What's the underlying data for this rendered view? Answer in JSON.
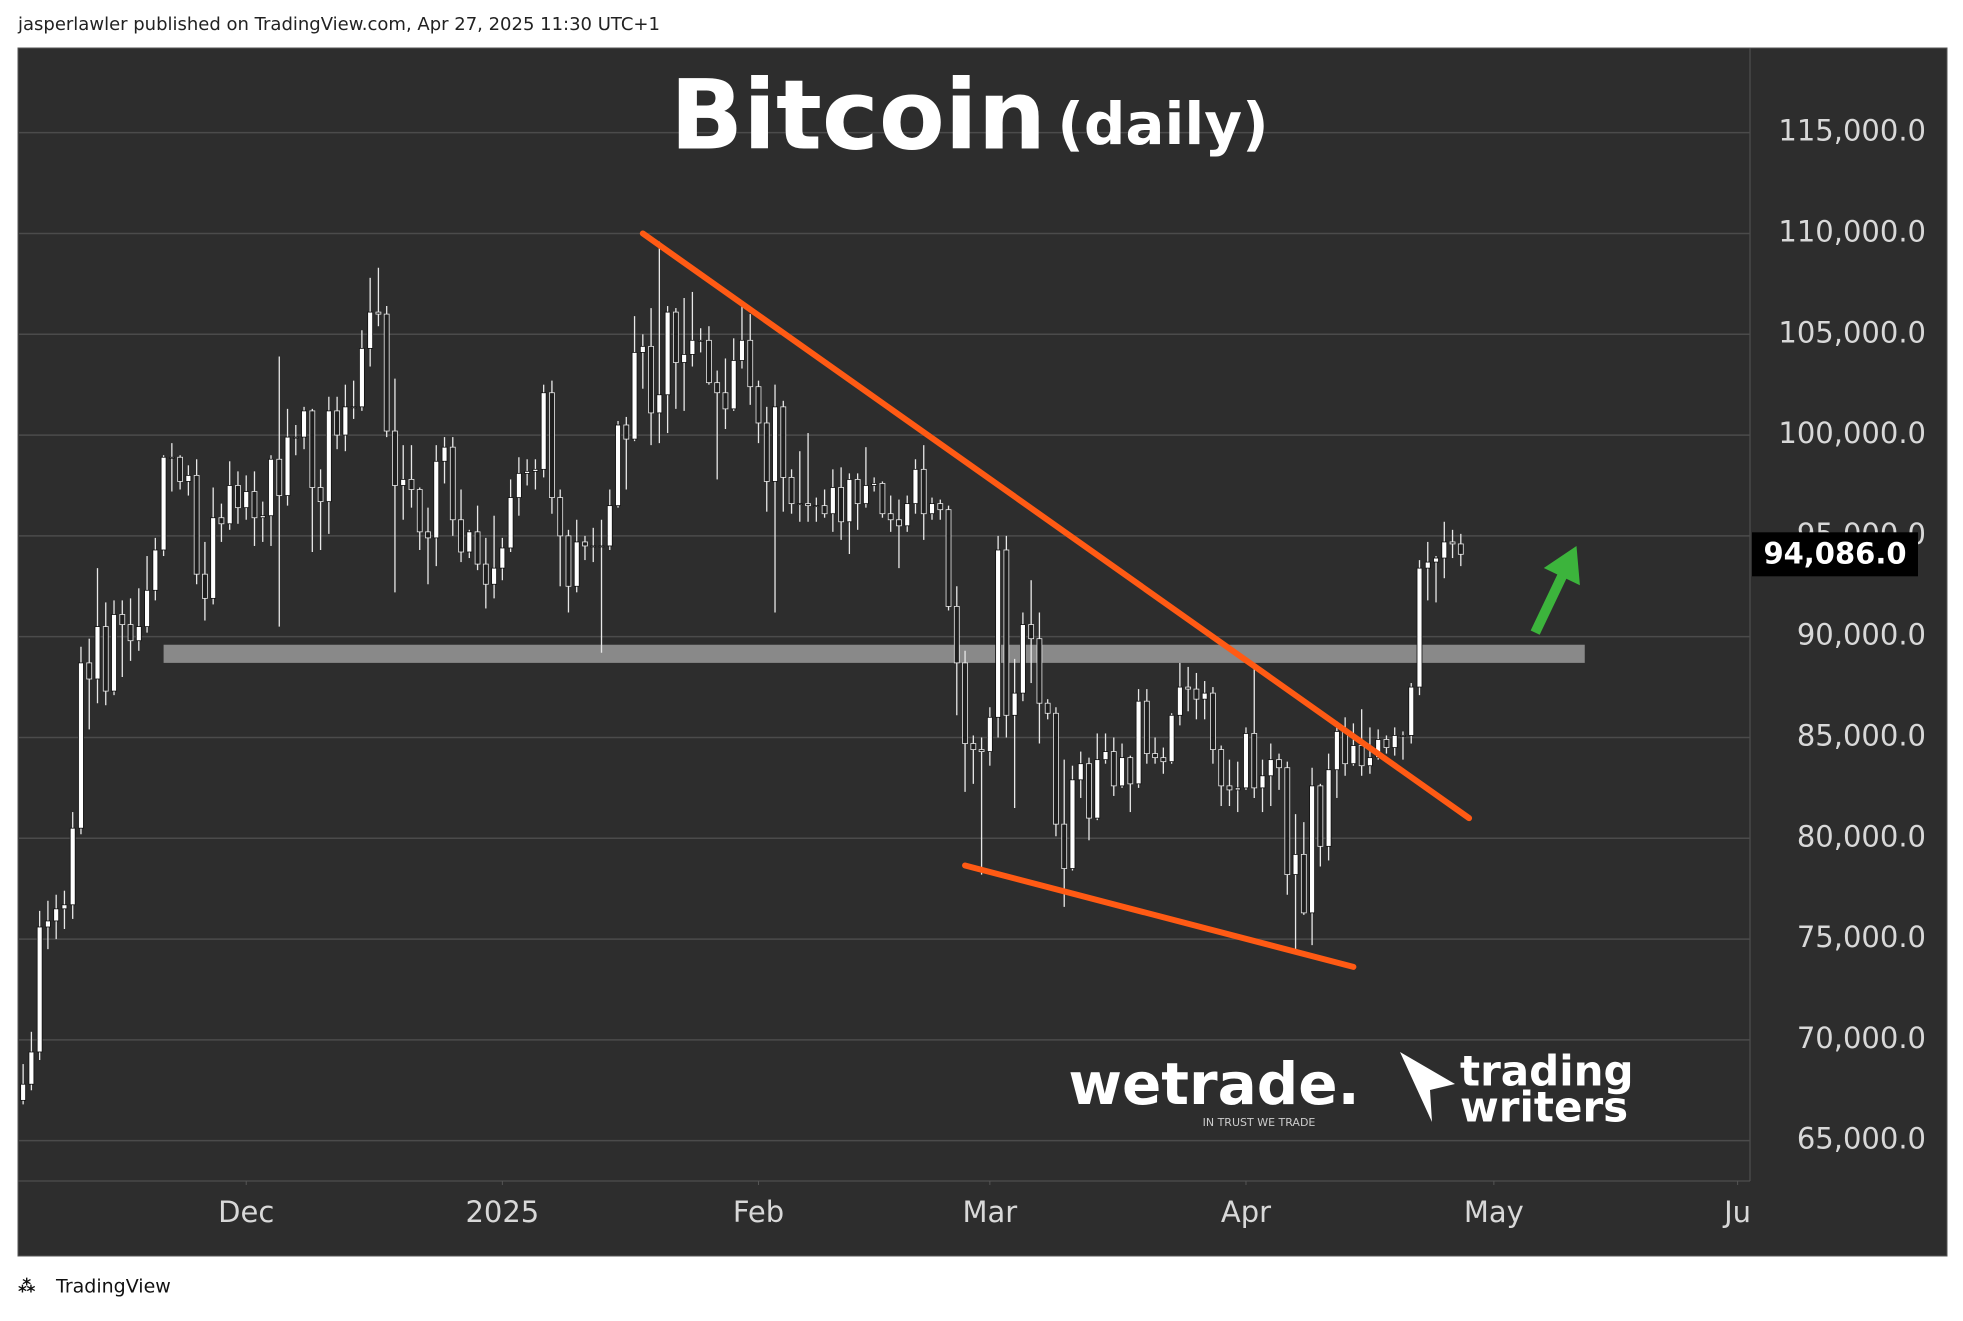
{
  "header": "jasperlawler published on TradingView.com, Apr 27, 2025 11:30 UTC+1",
  "footer": "TradingView",
  "logos": {
    "wetrade": "wetrade.",
    "wetrade_tagline": "IN TRUST WE TRADE",
    "writers_top": "trading",
    "writers_bottom": "writers"
  },
  "chart_data": {
    "type": "candlestick",
    "title": "Bitcoin",
    "subtitle": "(daily)",
    "up_color": "#ffffff",
    "down_color": "#1e1e1e",
    "grid": true,
    "xlim": [
      -0.5,
      209
    ],
    "ylim": [
      63000,
      119200
    ],
    "xticks": [
      {
        "value": 27,
        "label": "Dec"
      },
      {
        "value": 58,
        "label": "2025"
      },
      {
        "value": 89,
        "label": "Feb"
      },
      {
        "value": 117,
        "label": "Mar"
      },
      {
        "value": 148,
        "label": "Apr"
      },
      {
        "value": 178,
        "label": "May"
      },
      {
        "value": 207.5,
        "label": "Ju"
      }
    ],
    "yticks": [
      {
        "value": 65000,
        "label": "65,000.0"
      },
      {
        "value": 70000,
        "label": "70,000.0"
      },
      {
        "value": 75000,
        "label": "75,000.0"
      },
      {
        "value": 80000,
        "label": "80,000.0"
      },
      {
        "value": 85000,
        "label": "85,000.0"
      },
      {
        "value": 90000,
        "label": "90,000.0"
      },
      {
        "value": 95000,
        "label": "95,000.0"
      },
      {
        "value": 100000,
        "label": "100,000.0"
      },
      {
        "value": 105000,
        "label": "105,000.0"
      },
      {
        "value": 110000,
        "label": "110,000.0"
      },
      {
        "value": 115000,
        "label": "115,000.0"
      }
    ],
    "price_tag": {
      "value": 94086,
      "label": "94,086.0"
    },
    "support_zone": {
      "x": [
        17,
        189
      ],
      "y": [
        88700,
        89600
      ],
      "color": "#9a9a9a"
    },
    "trendlines": [
      {
        "points": [
          [
            75,
            110000
          ],
          [
            175,
            81000
          ]
        ],
        "color": "#ff5a14"
      },
      {
        "points": [
          [
            114,
            78650
          ],
          [
            161,
            73620
          ]
        ],
        "color": "#ff5a14"
      }
    ],
    "arrow": {
      "from": [
        183,
        90200
      ],
      "to": [
        188,
        94500
      ],
      "color": "#3cb43c"
    },
    "open": [
      67000,
      67800,
      69400,
      75600,
      75900,
      76500,
      76700,
      80500,
      88700,
      87900,
      90500,
      87300,
      91100,
      90600,
      89800,
      90500,
      92300,
      94300,
      98900,
      98900,
      97700,
      98000,
      93100,
      91900,
      95900,
      95600,
      97500,
      96400,
      97200,
      95900,
      96000,
      98800,
      97000,
      99900,
      99900,
      101200,
      97400,
      96700,
      101200,
      100000,
      101400,
      101400,
      104300,
      106100,
      106000,
      100200,
      97500,
      97800,
      97300,
      95200,
      94900,
      98700,
      99400,
      95800,
      94200,
      95200,
      93600,
      92600,
      93400,
      94400,
      96900,
      98100,
      98200,
      98300,
      102100,
      96900,
      95000,
      92500,
      94700,
      94500,
      94500,
      94500,
      96500,
      100500,
      99800,
      104100,
      104400,
      101100,
      102000,
      106100,
      103600,
      104000,
      104700,
      104700,
      102600,
      102100,
      101300,
      103700,
      104700,
      102400,
      100600,
      97700,
      101400,
      97900,
      96600,
      96600,
      96500,
      96500,
      96100,
      97400,
      95700,
      97800,
      96600,
      97500,
      97600,
      96100,
      95800,
      95500,
      96600,
      98300,
      96100,
      96600,
      96300,
      91500,
      88700,
      84700,
      84400,
      84300,
      86000,
      94300,
      86100,
      87200,
      90600,
      89900,
      86700,
      86200,
      80700,
      78500,
      82900,
      83700,
      81000,
      83900,
      84300,
      82600,
      84000,
      82700,
      86800,
      84200,
      84000,
      83800,
      86100,
      87500,
      87400,
      86900,
      87200,
      84400,
      82600,
      82400,
      82500,
      85200,
      82500,
      83100,
      83900,
      83500,
      78200,
      79200,
      76300,
      82600,
      79600,
      83400,
      85300,
      83700,
      84600,
      83600,
      84000,
      84900,
      84500,
      85100,
      85100,
      87500,
      93400,
      93700,
      93900,
      94700,
      94600
    ],
    "high": [
      68800,
      70400,
      76400,
      76900,
      77200,
      77400,
      81300,
      89500,
      89900,
      93400,
      91700,
      91800,
      91800,
      91900,
      92400,
      94000,
      94900,
      99000,
      99600,
      99000,
      98500,
      98800,
      94700,
      97400,
      96600,
      98700,
      98200,
      98000,
      98200,
      96700,
      99000,
      103900,
      101300,
      100500,
      101400,
      101300,
      98300,
      101900,
      101900,
      102500,
      102700,
      105200,
      107800,
      108300,
      106400,
      102800,
      99500,
      99500,
      97400,
      96400,
      99500,
      99900,
      99900,
      97300,
      95300,
      96500,
      94900,
      96000,
      94900,
      97800,
      98900,
      98800,
      98800,
      102500,
      102700,
      97300,
      95300,
      95800,
      95000,
      95400,
      95800,
      97300,
      100700,
      100900,
      105900,
      105000,
      106300,
      109600,
      106400,
      106300,
      106800,
      107100,
      105300,
      105400,
      103200,
      103800,
      104800,
      106400,
      106000,
      102700,
      101400,
      102500,
      101700,
      98300,
      99200,
      100100,
      96900,
      97300,
      98300,
      98400,
      98100,
      98100,
      99400,
      97900,
      97700,
      97000,
      96800,
      97000,
      98800,
      99500,
      96900,
      96800,
      96500,
      92500,
      89300,
      85100,
      85000,
      86500,
      95000,
      95000,
      88900,
      91200,
      92800,
      91200,
      86900,
      86500,
      83900,
      83600,
      84300,
      84000,
      85200,
      85200,
      85000,
      84700,
      84100,
      87400,
      87400,
      85000,
      84500,
      86200,
      88700,
      88500,
      88200,
      87800,
      87500,
      84600,
      83900,
      83800,
      85500,
      88500,
      83900,
      84700,
      84200,
      83800,
      81200,
      80800,
      83500,
      82700,
      84200,
      85800,
      86000,
      85700,
      86400,
      85500,
      85400,
      85100,
      85500,
      85300,
      87700,
      93800,
      94700,
      94000,
      95700,
      95300,
      95100
    ],
    "low": [
      66800,
      67500,
      69000,
      74500,
      75000,
      75500,
      76000,
      80200,
      85400,
      86700,
      86600,
      87100,
      88000,
      88800,
      89300,
      90200,
      91800,
      94000,
      97200,
      97300,
      97000,
      92600,
      90800,
      91600,
      94700,
      95300,
      95600,
      95800,
      94500,
      94700,
      94500,
      90500,
      96500,
      99000,
      99300,
      94200,
      94300,
      95100,
      99300,
      99200,
      100800,
      101200,
      103400,
      105400,
      99900,
      92200,
      95800,
      96400,
      94300,
      92600,
      93500,
      97600,
      95000,
      93700,
      93900,
      93300,
      91400,
      91900,
      92800,
      94200,
      96000,
      97500,
      97300,
      97900,
      96100,
      92500,
      91200,
      92200,
      93800,
      93700,
      89200,
      94300,
      96400,
      97300,
      99700,
      102300,
      99500,
      99600,
      100100,
      101300,
      101200,
      103400,
      104100,
      102500,
      97800,
      100300,
      101200,
      103300,
      101500,
      99600,
      96200,
      91200,
      96200,
      96100,
      95700,
      95700,
      95700,
      95900,
      95200,
      94800,
      94100,
      95300,
      96400,
      97200,
      95900,
      95200,
      93400,
      95200,
      96100,
      94800,
      95800,
      95800,
      91300,
      86100,
      82300,
      82700,
      78200,
      83600,
      85000,
      85000,
      81500,
      86800,
      87700,
      84700,
      85900,
      80100,
      76600,
      78400,
      82000,
      79900,
      80900,
      83700,
      82100,
      82500,
      81300,
      82500,
      83700,
      83700,
      83200,
      83700,
      85600,
      86300,
      85900,
      85900,
      83700,
      81600,
      81600,
      81300,
      82400,
      82000,
      81300,
      81600,
      82400,
      77200,
      74500,
      76200,
      74700,
      78600,
      78900,
      82000,
      83100,
      83600,
      83100,
      83200,
      83900,
      84200,
      84100,
      83900,
      84700,
      87100,
      91800,
      91700,
      92900,
      93900,
      93500
    ],
    "close": [
      67800,
      69400,
      75600,
      75900,
      76500,
      76700,
      80500,
      88700,
      87900,
      90500,
      87300,
      91100,
      90600,
      89800,
      90500,
      92300,
      94300,
      98900,
      98900,
      97700,
      98000,
      93100,
      91900,
      95900,
      95600,
      97500,
      96400,
      97200,
      95900,
      96000,
      98800,
      97000,
      99900,
      99900,
      101200,
      97400,
      96700,
      101200,
      100000,
      101400,
      101400,
      104300,
      106100,
      106000,
      100200,
      97500,
      97800,
      97300,
      95200,
      94900,
      98700,
      99400,
      95800,
      94200,
      95200,
      93600,
      92600,
      93400,
      94400,
      96900,
      98100,
      98200,
      98300,
      102100,
      96900,
      95000,
      92500,
      94700,
      94500,
      94500,
      94500,
      96500,
      100500,
      99800,
      104100,
      104400,
      101100,
      102000,
      106100,
      103600,
      104000,
      104700,
      104700,
      102600,
      102100,
      101300,
      103700,
      104700,
      102400,
      100600,
      97700,
      101400,
      97900,
      96600,
      96600,
      96500,
      96500,
      96100,
      97400,
      95700,
      97800,
      96600,
      97500,
      97600,
      96100,
      95800,
      95500,
      96600,
      98300,
      96100,
      96600,
      96300,
      91500,
      88700,
      84700,
      84400,
      84300,
      86000,
      94300,
      86100,
      87200,
      90600,
      89900,
      86700,
      86200,
      80700,
      78500,
      82900,
      83700,
      81000,
      83900,
      84300,
      82600,
      84000,
      82700,
      86800,
      84200,
      84000,
      83800,
      86100,
      87500,
      87400,
      86900,
      87200,
      84400,
      82600,
      82400,
      82500,
      85200,
      82500,
      83100,
      83900,
      83500,
      78200,
      79200,
      76300,
      82600,
      79600,
      83400,
      85300,
      83700,
      84600,
      83600,
      84000,
      84900,
      84500,
      85100,
      85100,
      87500,
      93400,
      93700,
      93900,
      94700,
      94600,
      94086
    ]
  }
}
